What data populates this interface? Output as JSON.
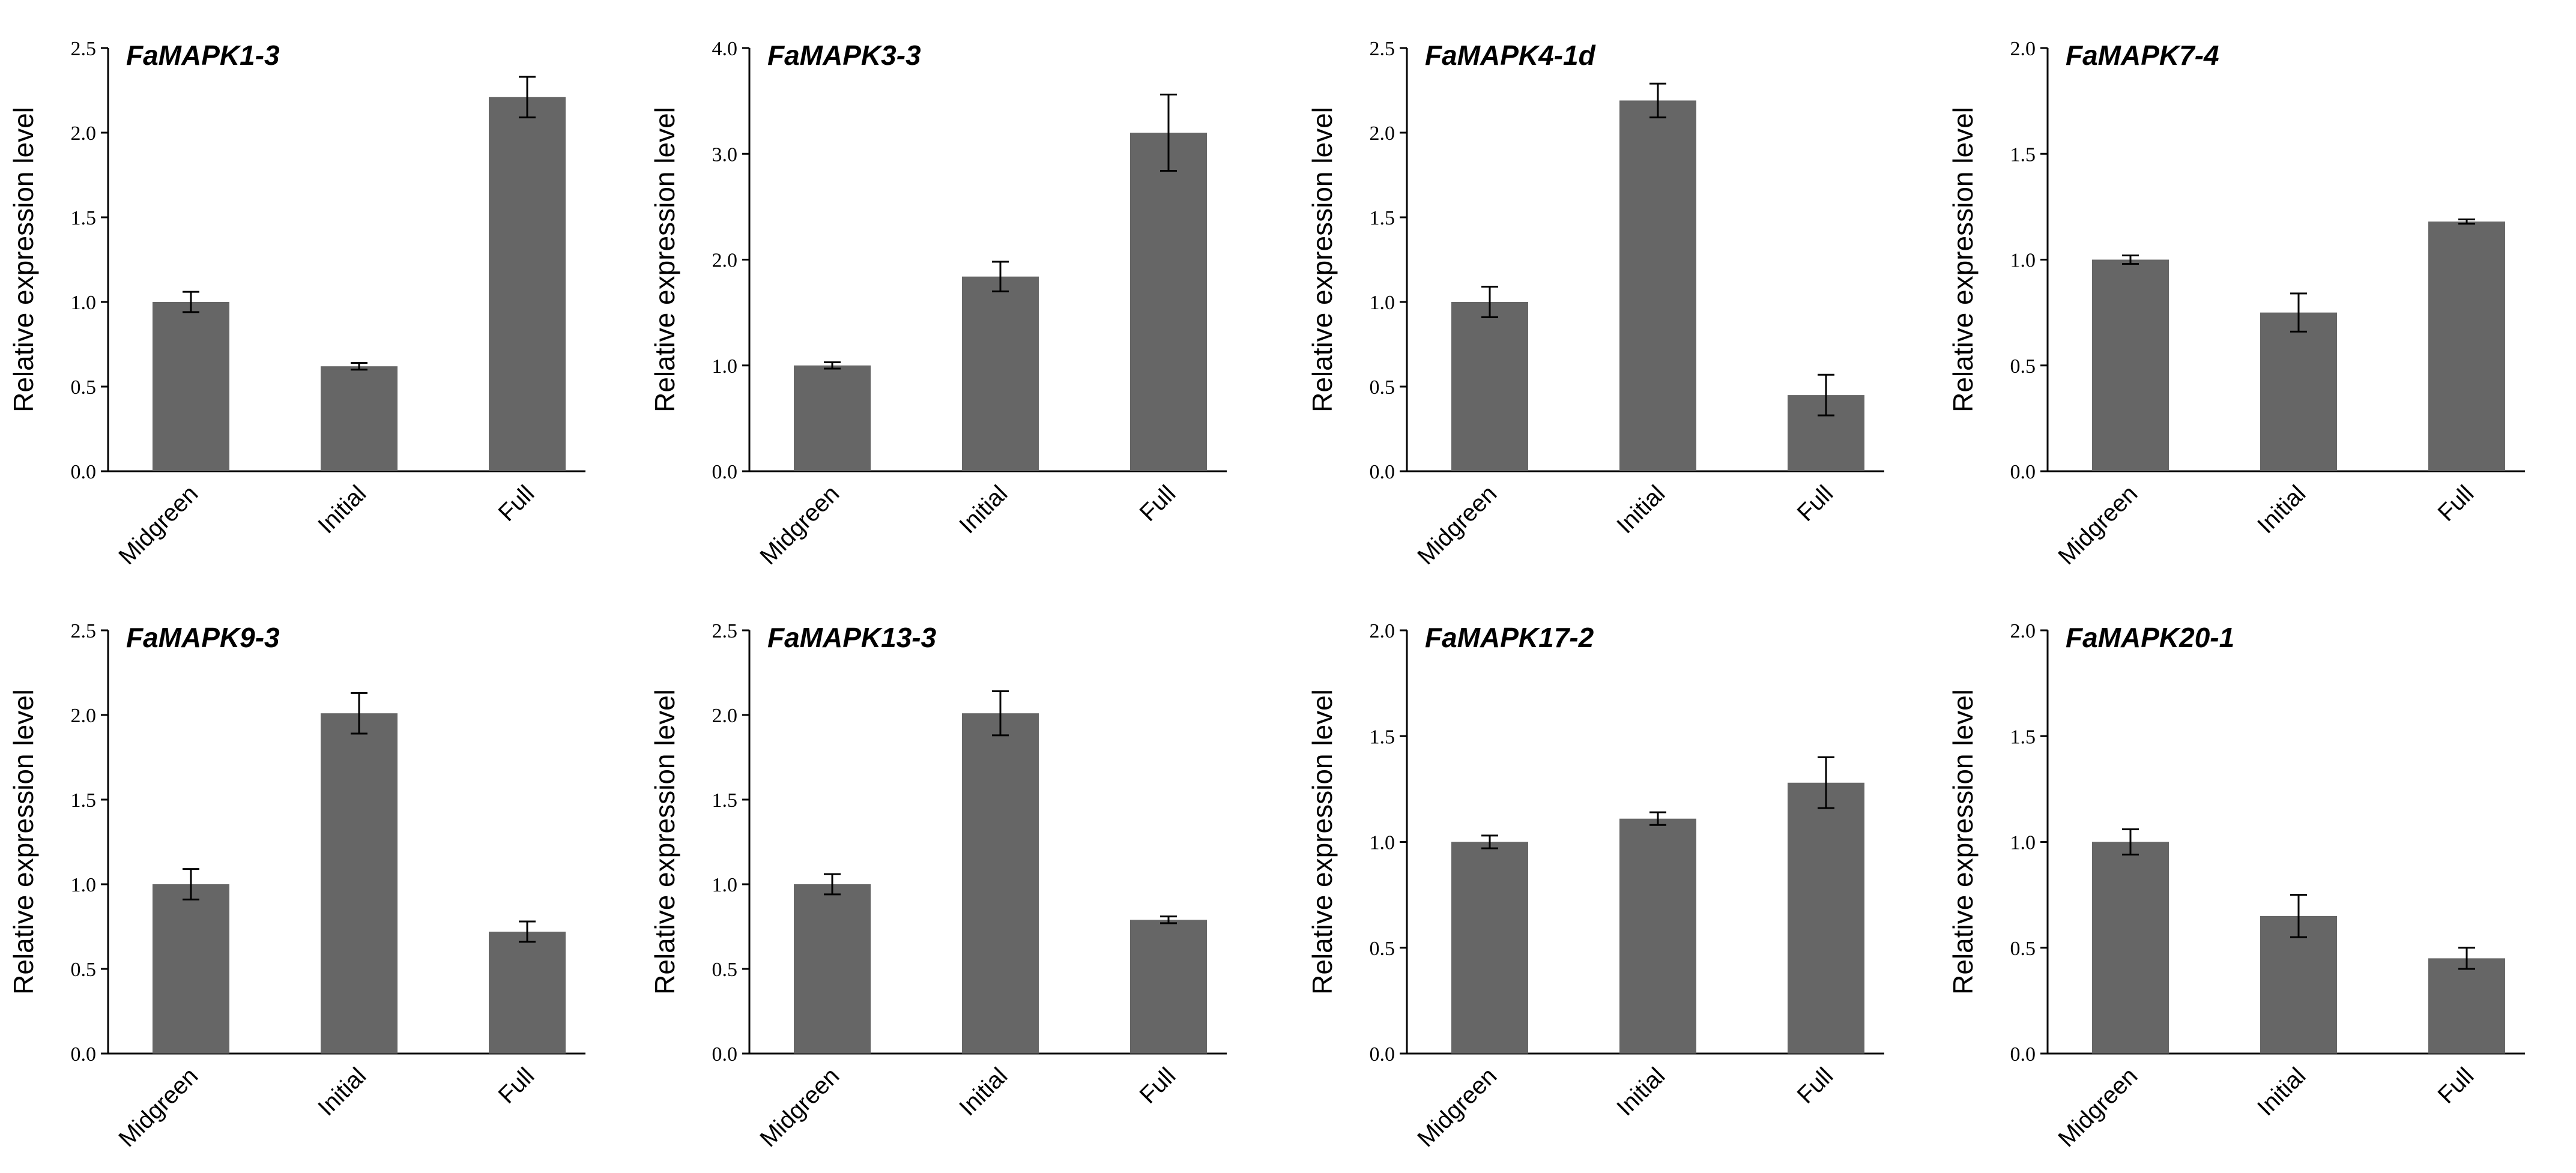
{
  "chart_data": [
    {
      "type": "bar",
      "title": "FaMAPK1-3",
      "ylabel": "Relative expression level",
      "xlabel": "",
      "categories": [
        "Midgreen",
        "Initial",
        "Full"
      ],
      "values": [
        1.0,
        0.62,
        2.21
      ],
      "errors": [
        0.06,
        0.02,
        0.12
      ],
      "ylim": [
        0,
        2.5
      ],
      "yticks": [
        "0.0",
        "0.5",
        "1.0",
        "1.5",
        "2.0",
        "2.5"
      ],
      "bar_color": "#666666"
    },
    {
      "type": "bar",
      "title": "FaMAPK3-3",
      "ylabel": "Relative expression level",
      "xlabel": "",
      "categories": [
        "Midgreen",
        "Initial",
        "Full"
      ],
      "values": [
        1.0,
        1.84,
        3.2
      ],
      "errors": [
        0.03,
        0.14,
        0.36
      ],
      "ylim": [
        0,
        4.0
      ],
      "yticks": [
        "0.0",
        "1.0",
        "2.0",
        "3.0",
        "4.0"
      ],
      "bar_color": "#666666"
    },
    {
      "type": "bar",
      "title": "FaMAPK4-1d",
      "ylabel": "Relative expression level",
      "xlabel": "",
      "categories": [
        "Midgreen",
        "Initial",
        "Full"
      ],
      "values": [
        1.0,
        2.19,
        0.45
      ],
      "errors": [
        0.09,
        0.1,
        0.12
      ],
      "ylim": [
        0,
        2.5
      ],
      "yticks": [
        "0.0",
        "0.5",
        "1.0",
        "1.5",
        "2.0",
        "2.5"
      ],
      "bar_color": "#666666"
    },
    {
      "type": "bar",
      "title": "FaMAPK7-4",
      "ylabel": "Relative expression level",
      "xlabel": "",
      "categories": [
        "Midgreen",
        "Initial",
        "Full"
      ],
      "values": [
        1.0,
        0.75,
        1.18
      ],
      "errors": [
        0.02,
        0.09,
        0.01
      ],
      "ylim": [
        0,
        2.0
      ],
      "yticks": [
        "0.0",
        "0.5",
        "1.0",
        "1.5",
        "2.0"
      ],
      "bar_color": "#666666"
    },
    {
      "type": "bar",
      "title": "FaMAPK9-3",
      "ylabel": "Relative expression level",
      "xlabel": "",
      "categories": [
        "Midgreen",
        "Initial",
        "Full"
      ],
      "values": [
        1.0,
        2.01,
        0.72
      ],
      "errors": [
        0.09,
        0.12,
        0.06
      ],
      "ylim": [
        0,
        2.5
      ],
      "yticks": [
        "0.0",
        "0.5",
        "1.0",
        "1.5",
        "2.0",
        "2.5"
      ],
      "bar_color": "#666666"
    },
    {
      "type": "bar",
      "title": "FaMAPK13-3",
      "ylabel": "Relative expression level",
      "xlabel": "",
      "categories": [
        "Midgreen",
        "Initial",
        "Full"
      ],
      "values": [
        1.0,
        2.01,
        0.79
      ],
      "errors": [
        0.06,
        0.13,
        0.02
      ],
      "ylim": [
        0,
        2.5
      ],
      "yticks": [
        "0.0",
        "0.5",
        "1.0",
        "1.5",
        "2.0",
        "2.5"
      ],
      "bar_color": "#666666"
    },
    {
      "type": "bar",
      "title": "FaMAPK17-2",
      "ylabel": "Relative expression level",
      "xlabel": "",
      "categories": [
        "Midgreen",
        "Initial",
        "Full"
      ],
      "values": [
        1.0,
        1.11,
        1.28
      ],
      "errors": [
        0.03,
        0.03,
        0.12
      ],
      "ylim": [
        0,
        2.0
      ],
      "yticks": [
        "0.0",
        "0.5",
        "1.0",
        "1.5",
        "2.0"
      ],
      "bar_color": "#666666"
    },
    {
      "type": "bar",
      "title": "FaMAPK20-1",
      "ylabel": "Relative expression level",
      "xlabel": "",
      "categories": [
        "Midgreen",
        "Initial",
        "Full"
      ],
      "values": [
        1.0,
        0.65,
        0.45
      ],
      "errors": [
        0.06,
        0.1,
        0.05
      ],
      "ylim": [
        0,
        2.0
      ],
      "yticks": [
        "0.0",
        "0.5",
        "1.0",
        "1.5",
        "2.0"
      ],
      "bar_color": "#666666"
    }
  ]
}
